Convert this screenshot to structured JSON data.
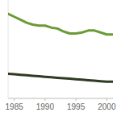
{
  "chart_data": {
    "type": "line",
    "x": [
      1984,
      1985,
      1986,
      1987,
      1988,
      1989,
      1990,
      1991,
      1992,
      1993,
      1994,
      1995,
      1996,
      1997,
      1998,
      1999,
      2000,
      2001
    ],
    "series": [
      {
        "color": "#6b9b37",
        "values": [
          86,
          83,
          80,
          77,
          75,
          74,
          74,
          72,
          71,
          68,
          66,
          66,
          67,
          69,
          69,
          67,
          65,
          65
        ]
      },
      {
        "color": "#2e3a22",
        "values": [
          25,
          24.5,
          24,
          23.5,
          23,
          22.5,
          22,
          21.5,
          21,
          20.5,
          20,
          19.5,
          19,
          18.5,
          18,
          17.5,
          17,
          17
        ]
      }
    ],
    "xlim": [
      1984,
      2001
    ],
    "xticks": [
      1985,
      1990,
      1995,
      2000
    ],
    "ylim": [
      0,
      100
    ],
    "grid": false,
    "tick_labels": "x"
  }
}
